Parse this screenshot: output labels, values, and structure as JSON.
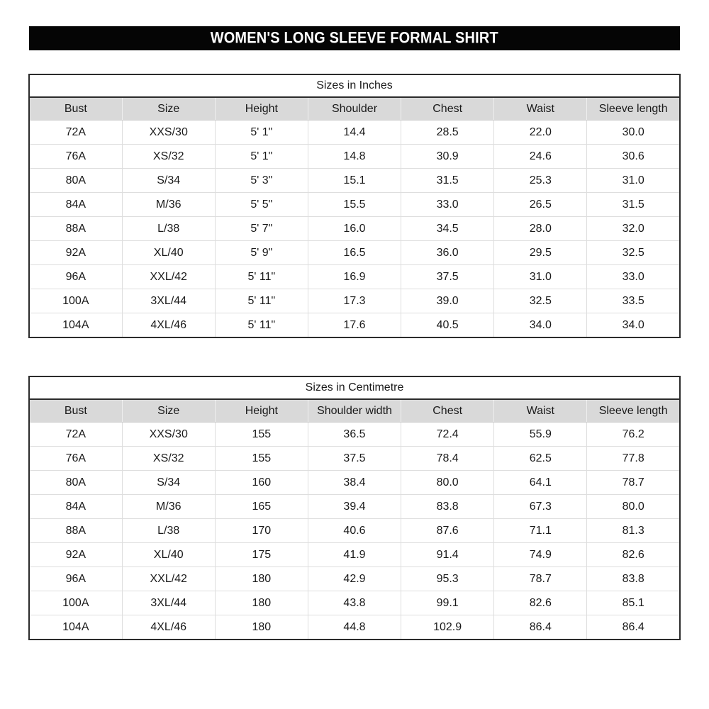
{
  "banner": {
    "title": "WOMEN'S LONG SLEEVE FORMAL SHIRT",
    "bg_color": "#050505",
    "text_color": "#ffffff"
  },
  "colors": {
    "header_row_bg": "#d9d9d9",
    "outer_border": "#2b2b2b",
    "gridline": "#dedede",
    "text": "#1a1a1a",
    "page_bg": "#ffffff"
  },
  "tables": [
    {
      "title": "Sizes in Inches",
      "columns": [
        "Bust",
        "Size",
        "Height",
        "Shoulder",
        "Chest",
        "Waist",
        "Sleeve length"
      ],
      "rows": [
        [
          "72A",
          "XXS/30",
          "5' 1\"",
          "14.4",
          "28.5",
          "22.0",
          "30.0"
        ],
        [
          "76A",
          "XS/32",
          "5' 1\"",
          "14.8",
          "30.9",
          "24.6",
          "30.6"
        ],
        [
          "80A",
          "S/34",
          "5' 3\"",
          "15.1",
          "31.5",
          "25.3",
          "31.0"
        ],
        [
          "84A",
          "M/36",
          "5' 5\"",
          "15.5",
          "33.0",
          "26.5",
          "31.5"
        ],
        [
          "88A",
          "L/38",
          "5' 7\"",
          "16.0",
          "34.5",
          "28.0",
          "32.0"
        ],
        [
          "92A",
          "XL/40",
          "5' 9\"",
          "16.5",
          "36.0",
          "29.5",
          "32.5"
        ],
        [
          "96A",
          "XXL/42",
          "5' 11\"",
          "16.9",
          "37.5",
          "31.0",
          "33.0"
        ],
        [
          "100A",
          "3XL/44",
          "5' 11\"",
          "17.3",
          "39.0",
          "32.5",
          "33.5"
        ],
        [
          "104A",
          "4XL/46",
          "5' 11\"",
          "17.6",
          "40.5",
          "34.0",
          "34.0"
        ]
      ]
    },
    {
      "title": "Sizes in Centimetre",
      "columns": [
        "Bust",
        "Size",
        "Height",
        "Shoulder width",
        "Chest",
        "Waist",
        "Sleeve length"
      ],
      "rows": [
        [
          "72A",
          "XXS/30",
          "155",
          "36.5",
          "72.4",
          "55.9",
          "76.2"
        ],
        [
          "76A",
          "XS/32",
          "155",
          "37.5",
          "78.4",
          "62.5",
          "77.8"
        ],
        [
          "80A",
          "S/34",
          "160",
          "38.4",
          "80.0",
          "64.1",
          "78.7"
        ],
        [
          "84A",
          "M/36",
          "165",
          "39.4",
          "83.8",
          "67.3",
          "80.0"
        ],
        [
          "88A",
          "L/38",
          "170",
          "40.6",
          "87.6",
          "71.1",
          "81.3"
        ],
        [
          "92A",
          "XL/40",
          "175",
          "41.9",
          "91.4",
          "74.9",
          "82.6"
        ],
        [
          "96A",
          "XXL/42",
          "180",
          "42.9",
          "95.3",
          "78.7",
          "83.8"
        ],
        [
          "100A",
          "3XL/44",
          "180",
          "43.8",
          "99.1",
          "82.6",
          "85.1"
        ],
        [
          "104A",
          "4XL/46",
          "180",
          "44.8",
          "102.9",
          "86.4",
          "86.4"
        ]
      ]
    }
  ]
}
